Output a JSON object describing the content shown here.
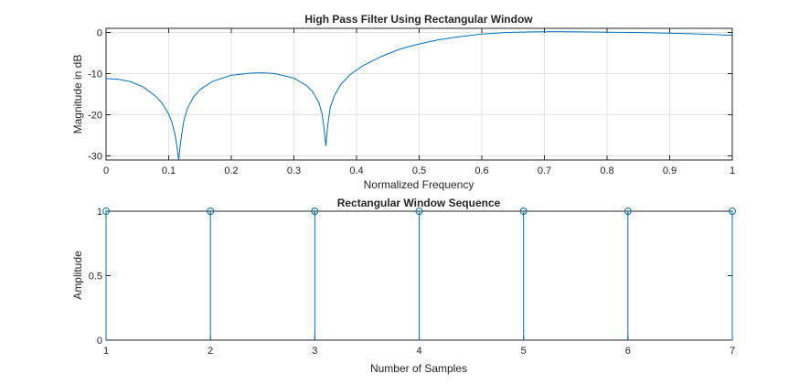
{
  "chart_data": [
    {
      "type": "line",
      "title": "High Pass Filter Using Rectangular Window",
      "xlabel": "Normalized Frequency",
      "ylabel": "Magnitude in dB",
      "xlim": [
        0,
        1
      ],
      "ylim": [
        -31,
        1
      ],
      "xticks": [
        0,
        0.1,
        0.2,
        0.3,
        0.4,
        0.5,
        0.6,
        0.7,
        0.8,
        0.9,
        1
      ],
      "xtick_labels": [
        "0",
        "0.1",
        "0.2",
        "0.3",
        "0.4",
        "0.5",
        "0.6",
        "0.7",
        "0.8",
        "0.9",
        "1"
      ],
      "yticks": [
        0,
        -10,
        -20,
        -30
      ],
      "ytick_labels": [
        "0",
        "-10",
        "-20",
        "-30"
      ],
      "grid": true,
      "series": [
        {
          "color": "#0072bd",
          "x": [
            0,
            0.02,
            0.04,
            0.06,
            0.08,
            0.09,
            0.1,
            0.105,
            0.11,
            0.113,
            0.116,
            0.118,
            0.121,
            0.124,
            0.13,
            0.14,
            0.15,
            0.17,
            0.2,
            0.23,
            0.25,
            0.27,
            0.3,
            0.32,
            0.33,
            0.34,
            0.345,
            0.348,
            0.351,
            0.354,
            0.358,
            0.365,
            0.375,
            0.39,
            0.41,
            0.44,
            0.47,
            0.5,
            0.53,
            0.56,
            0.6,
            0.64,
            0.68,
            0.72,
            0.76,
            0.8,
            0.84,
            0.88,
            0.92,
            0.96,
            1
          ],
          "y": [
            -11.2,
            -11.4,
            -12,
            -13.3,
            -15.6,
            -17.3,
            -19.8,
            -21.8,
            -24.7,
            -27.5,
            -31,
            -28,
            -24.6,
            -21.6,
            -18.4,
            -15.6,
            -13.9,
            -11.9,
            -10.4,
            -9.9,
            -9.8,
            -10,
            -11.1,
            -12.9,
            -14.4,
            -17.1,
            -19.8,
            -23.2,
            -27.6,
            -22.5,
            -18.2,
            -15.2,
            -12.6,
            -10.2,
            -8.1,
            -5.8,
            -4,
            -2.8,
            -1.8,
            -1.1,
            -0.4,
            0,
            0.15,
            0.2,
            0.15,
            0.05,
            0,
            -0.1,
            -0.25,
            -0.45,
            -0.7
          ]
        }
      ]
    },
    {
      "type": "stem",
      "title": "Rectangular Window Sequence",
      "xlabel": "Number of Samples",
      "ylabel": "Amplitude",
      "xlim": [
        1,
        7
      ],
      "ylim": [
        0,
        1
      ],
      "xticks": [
        1,
        2,
        3,
        4,
        5,
        6,
        7
      ],
      "xtick_labels": [
        "1",
        "2",
        "3",
        "4",
        "5",
        "6",
        "7"
      ],
      "yticks": [
        0,
        0.5,
        1
      ],
      "ytick_labels": [
        "0",
        "0.5",
        "1"
      ],
      "grid": false,
      "series": [
        {
          "color": "#0072bd",
          "x": [
            1,
            2,
            3,
            4,
            5,
            6,
            7
          ],
          "y": [
            1,
            1,
            1,
            1,
            1,
            1,
            1
          ]
        }
      ]
    }
  ]
}
